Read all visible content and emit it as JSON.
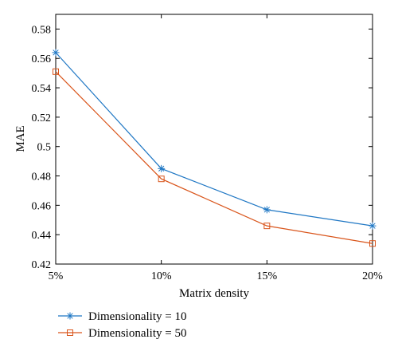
{
  "chart_data": {
    "type": "line",
    "title": "",
    "xlabel": "Matrix density",
    "ylabel": "MAE",
    "categories": [
      "5%",
      "10%",
      "15%",
      "20%"
    ],
    "ylim": [
      0.42,
      0.59
    ],
    "yticks": [
      0.42,
      0.44,
      0.46,
      0.48,
      0.5,
      0.52,
      0.54,
      0.56,
      0.58
    ],
    "ytick_labels": [
      "0.42",
      "0.44",
      "0.46",
      "0.48",
      "0.5",
      "0.52",
      "0.54",
      "0.56",
      "0.58"
    ],
    "grid": false,
    "legend_position": "below",
    "series": [
      {
        "name": "Dimensionality = 10",
        "values": [
          0.564,
          0.485,
          0.457,
          0.446
        ],
        "color": "#1f77c4",
        "marker": "asterisk"
      },
      {
        "name": "Dimensionality = 50",
        "values": [
          0.551,
          0.478,
          0.446,
          0.434
        ],
        "color": "#d9541a",
        "marker": "square"
      }
    ]
  }
}
